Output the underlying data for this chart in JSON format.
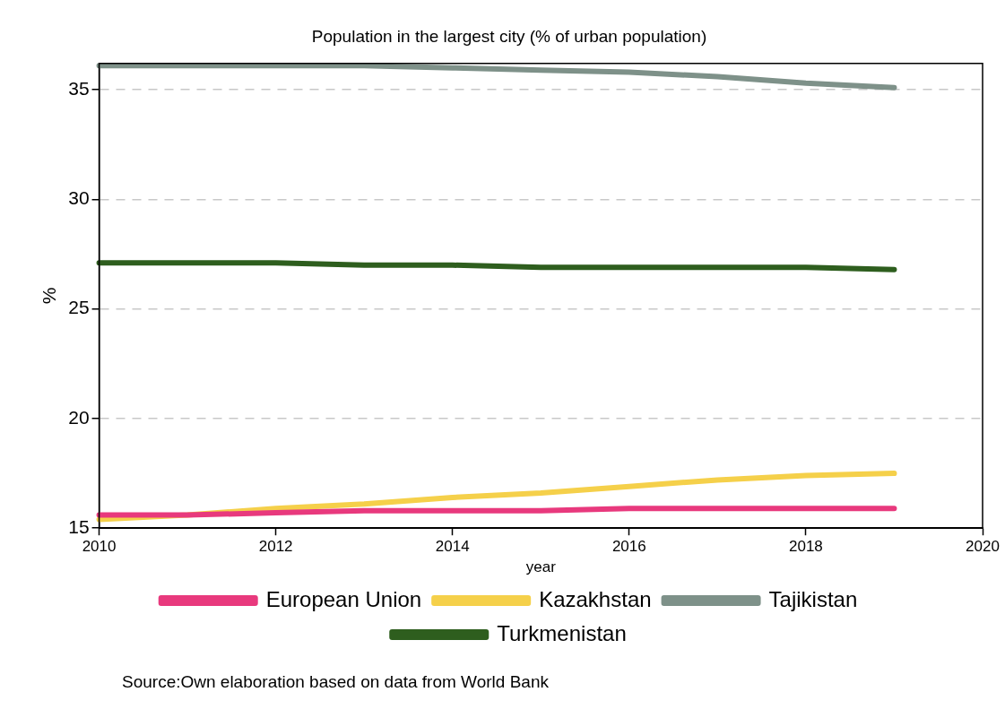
{
  "chart_data": {
    "type": "line",
    "title": "Population in the largest city (% of urban population)",
    "xlabel": "year",
    "ylabel": "%",
    "x": [
      2010,
      2011,
      2012,
      2013,
      2014,
      2015,
      2016,
      2017,
      2018,
      2019
    ],
    "series": [
      {
        "name": "European Union",
        "color": "#e8397d",
        "values": [
          15.6,
          15.6,
          15.7,
          15.8,
          15.8,
          15.8,
          15.9,
          15.9,
          15.9,
          15.9
        ]
      },
      {
        "name": "Kazakhstan",
        "color": "#f5d04a",
        "values": [
          15.4,
          15.6,
          15.9,
          16.1,
          16.4,
          16.6,
          16.9,
          17.2,
          17.4,
          17.5
        ]
      },
      {
        "name": "Tajikistan",
        "color": "#7e9189",
        "values": [
          36.1,
          36.1,
          36.1,
          36.1,
          36.0,
          35.9,
          35.8,
          35.6,
          35.3,
          35.1
        ]
      },
      {
        "name": "Turkmenistan",
        "color": "#2e5e1e",
        "values": [
          27.1,
          27.1,
          27.1,
          27.0,
          27.0,
          26.9,
          26.9,
          26.9,
          26.9,
          26.8
        ]
      }
    ],
    "xlim": [
      2010,
      2020
    ],
    "xticks": [
      2010,
      2012,
      2014,
      2016,
      2018,
      2020
    ],
    "ylim": [
      15,
      36.2
    ],
    "yticks": [
      15,
      20,
      25,
      30,
      35
    ],
    "grid": "y",
    "legend": "bottom",
    "line_style": "solid",
    "annotations": [
      "Source:Own elaboration based on data from World Bank"
    ]
  }
}
